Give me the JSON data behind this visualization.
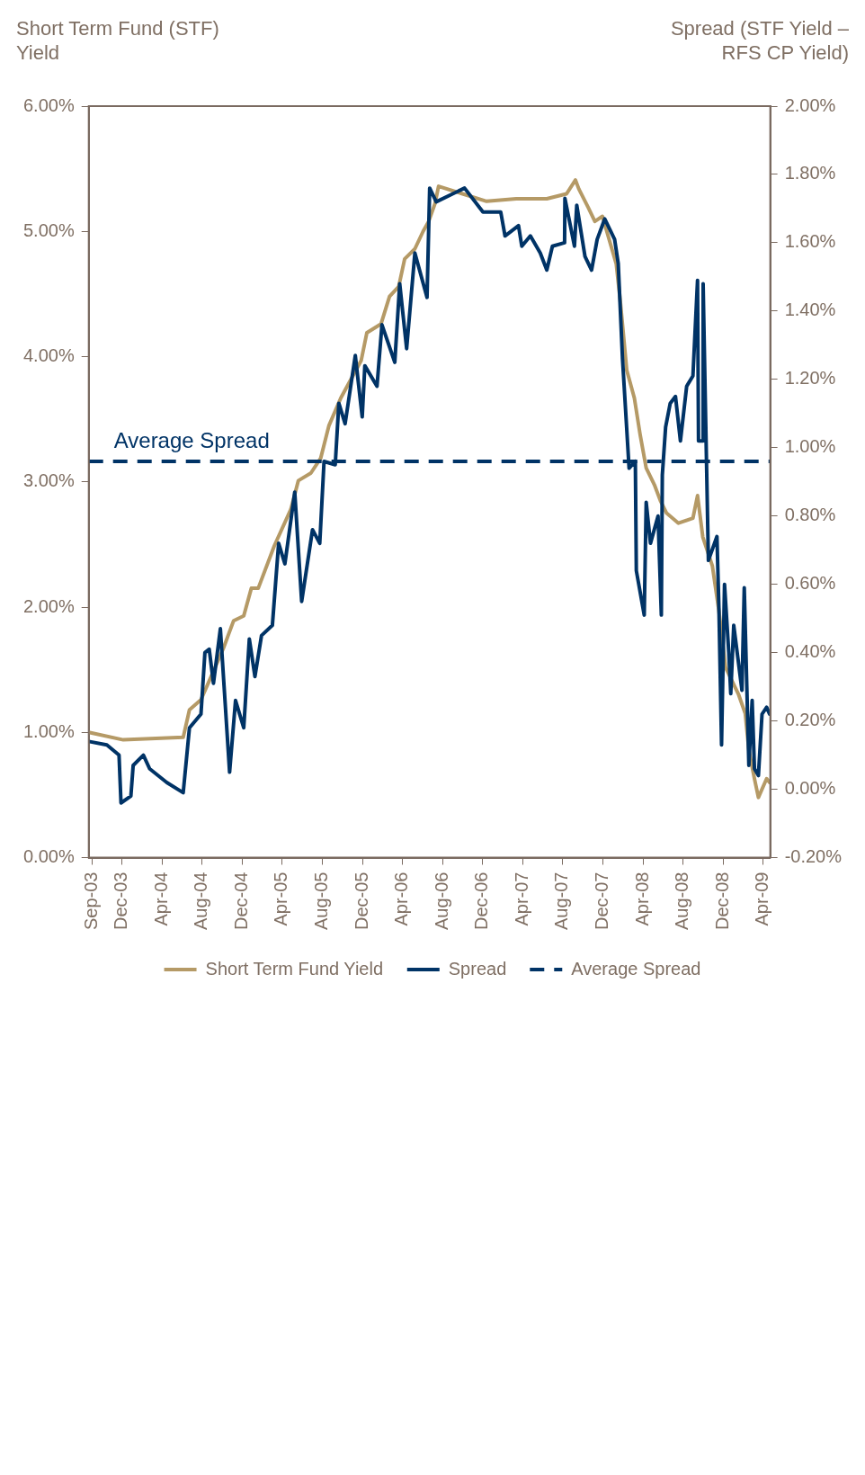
{
  "chart_data": {
    "type": "line",
    "ylabel": "Short Term Fund (STF) Yield",
    "y2label": "Spread (STF Yield – RFS CP Yield)",
    "xlim": [
      "2003-08-22",
      "2009-04-23"
    ],
    "xticks": [
      {
        "value": "2003-09-01",
        "label": "Sep-03"
      },
      {
        "value": "2003-12-01",
        "label": "Dec-03"
      },
      {
        "value": "2004-04-01",
        "label": "Apr-04"
      },
      {
        "value": "2004-08-01",
        "label": "Aug-04"
      },
      {
        "value": "2004-12-01",
        "label": "Dec-04"
      },
      {
        "value": "2005-04-01",
        "label": "Apr-05"
      },
      {
        "value": "2005-08-01",
        "label": "Aug-05"
      },
      {
        "value": "2005-12-01",
        "label": "Dec-05"
      },
      {
        "value": "2006-04-01",
        "label": "Apr-06"
      },
      {
        "value": "2006-08-01",
        "label": "Aug-06"
      },
      {
        "value": "2006-12-01",
        "label": "Dec-06"
      },
      {
        "value": "2007-04-01",
        "label": "Apr-07"
      },
      {
        "value": "2007-08-01",
        "label": "Aug-07"
      },
      {
        "value": "2007-12-01",
        "label": "Dec-07"
      },
      {
        "value": "2008-04-01",
        "label": "Apr-08"
      },
      {
        "value": "2008-08-01",
        "label": "Aug-08"
      },
      {
        "value": "2008-12-01",
        "label": "Dec-08"
      },
      {
        "value": "2009-04-01",
        "label": "Apr-09"
      }
    ],
    "ylim": [
      0,
      6
    ],
    "yticks": [
      {
        "value": 0,
        "label": "0.00%"
      },
      {
        "value": 1,
        "label": "1.00%"
      },
      {
        "value": 2,
        "label": "2.00%"
      },
      {
        "value": 3,
        "label": "3.00%"
      },
      {
        "value": 4,
        "label": "4.00%"
      },
      {
        "value": 5,
        "label": "5.00%"
      },
      {
        "value": 6,
        "label": "6.00%"
      }
    ],
    "y2lim": [
      -0.2,
      2
    ],
    "y2ticks": [
      {
        "value": -0.2,
        "label": "-0.20%"
      },
      {
        "value": 0,
        "label": "0.00%"
      },
      {
        "value": 0.2,
        "label": "0.20%"
      },
      {
        "value": 0.4,
        "label": "0.40%"
      },
      {
        "value": 0.6,
        "label": "0.60%"
      },
      {
        "value": 0.8,
        "label": "0.80%"
      },
      {
        "value": 1,
        "label": "1.00%"
      },
      {
        "value": 1.2,
        "label": "1.20%"
      },
      {
        "value": 1.4,
        "label": "1.40%"
      },
      {
        "value": 1.6,
        "label": "1.60%"
      },
      {
        "value": 1.8,
        "label": "1.80%"
      },
      {
        "value": 2,
        "label": "2.00%"
      }
    ],
    "grid": false,
    "legend": "bottom",
    "marker": "none",
    "line_style": "solid",
    "ref_lines": [
      {
        "axis": "y2",
        "value": 0.96,
        "label": "Average Spread",
        "color": "#003366",
        "line_style": "dashed"
      }
    ],
    "series": [
      {
        "name": "Short Term Fund Yield",
        "color": "#b59a66",
        "axis": "y",
        "x": [
          "2003-08-22",
          "2003-12-05",
          "2004-06-04",
          "2004-06-23",
          "2004-07-28",
          "2004-08-22",
          "2004-10-04",
          "2004-11-04",
          "2004-12-05",
          "2004-12-28",
          "2005-01-18",
          "2005-03-08",
          "2005-04-27",
          "2005-05-20",
          "2005-06-27",
          "2005-07-27",
          "2005-08-21",
          "2005-09-26",
          "2005-11-27",
          "2005-12-14",
          "2006-01-26",
          "2006-02-21",
          "2006-03-21",
          "2006-04-08",
          "2006-05-09",
          "2006-06-03",
          "2006-06-20",
          "2006-07-09",
          "2006-07-20",
          "2006-10-01",
          "2006-12-13",
          "2007-03-13",
          "2007-06-14",
          "2007-08-13",
          "2007-09-09",
          "2007-09-19",
          "2007-10-18",
          "2007-11-07",
          "2007-11-30",
          "2008-01-11",
          "2008-01-23",
          "2008-02-12",
          "2008-03-06",
          "2008-03-24",
          "2008-04-11",
          "2008-05-07",
          "2008-05-24",
          "2008-06-12",
          "2008-07-18",
          "2008-08-31",
          "2008-09-14",
          "2008-09-30",
          "2008-10-29",
          "2008-11-18",
          "2008-12-08",
          "2009-01-17",
          "2009-02-06",
          "2009-02-17",
          "2009-03-06",
          "2009-03-18",
          "2009-04-12",
          "2009-04-21"
        ],
        "values": [
          1.0,
          0.94,
          0.96,
          1.18,
          1.26,
          1.41,
          1.67,
          1.89,
          1.93,
          2.15,
          2.15,
          2.49,
          2.78,
          3.01,
          3.07,
          3.19,
          3.45,
          3.67,
          3.97,
          4.19,
          4.26,
          4.48,
          4.56,
          4.78,
          4.86,
          5.0,
          5.08,
          5.22,
          5.36,
          5.3,
          5.24,
          5.26,
          5.26,
          5.3,
          5.41,
          5.34,
          5.19,
          5.08,
          5.12,
          4.74,
          4.45,
          3.89,
          3.67,
          3.37,
          3.11,
          2.97,
          2.85,
          2.75,
          2.67,
          2.71,
          2.89,
          2.56,
          2.33,
          1.97,
          1.52,
          1.3,
          1.15,
          0.86,
          0.63,
          0.48,
          0.63,
          0.6
        ]
      },
      {
        "name": "Spread",
        "color": "#003366",
        "axis": "y2",
        "x": [
          "2003-08-22",
          "2003-10-16",
          "2003-11-22",
          "2003-11-28",
          "2003-12-28",
          "2004-01-04",
          "2004-02-04",
          "2004-02-23",
          "2004-04-15",
          "2004-06-04",
          "2004-06-23",
          "2004-07-28",
          "2004-08-09",
          "2004-08-22",
          "2004-09-04",
          "2004-09-25",
          "2004-10-23",
          "2004-11-10",
          "2004-12-05",
          "2004-12-22",
          "2005-01-08",
          "2005-01-28",
          "2005-03-02",
          "2005-03-21",
          "2005-04-09",
          "2005-05-09",
          "2005-05-30",
          "2005-07-02",
          "2005-07-24",
          "2005-08-06",
          "2005-09-09",
          "2005-09-20",
          "2005-10-09",
          "2005-11-09",
          "2005-11-30",
          "2005-12-08",
          "2006-01-14",
          "2006-01-29",
          "2006-03-09",
          "2006-03-24",
          "2006-04-14",
          "2006-05-09",
          "2006-06-15",
          "2006-06-23",
          "2006-07-13",
          "2006-10-07",
          "2006-12-02",
          "2007-01-25",
          "2007-02-07",
          "2007-03-20",
          "2007-03-30",
          "2007-04-25",
          "2007-05-25",
          "2007-06-14",
          "2007-07-01",
          "2007-08-07",
          "2007-08-08",
          "2007-09-06",
          "2007-09-13",
          "2007-10-08",
          "2007-10-28",
          "2007-11-14",
          "2007-12-07",
          "2008-01-06",
          "2008-01-17",
          "2008-01-30",
          "2008-02-19",
          "2008-03-09",
          "2008-03-12",
          "2008-04-05",
          "2008-04-11",
          "2008-04-24",
          "2008-05-17",
          "2008-05-27",
          "2008-05-30",
          "2008-06-09",
          "2008-06-23",
          "2008-07-09",
          "2008-07-24",
          "2008-08-12",
          "2008-08-31",
          "2008-09-14",
          "2008-09-17",
          "2008-09-30",
          "2008-10-01",
          "2008-10-09",
          "2008-10-17",
          "2008-11-12",
          "2008-11-18",
          "2008-11-26",
          "2008-12-05",
          "2008-12-18",
          "2008-12-24",
          "2009-01-02",
          "2009-01-27",
          "2009-02-03",
          "2009-02-17",
          "2009-02-27",
          "2009-03-06",
          "2009-03-18",
          "2009-03-29",
          "2009-04-12",
          "2009-04-21"
        ],
        "values": [
          0.14,
          0.13,
          0.1,
          -0.04,
          -0.02,
          0.07,
          0.1,
          0.06,
          0.02,
          -0.01,
          0.18,
          0.22,
          0.4,
          0.41,
          0.31,
          0.47,
          0.05,
          0.26,
          0.18,
          0.44,
          0.33,
          0.45,
          0.48,
          0.72,
          0.66,
          0.87,
          0.55,
          0.76,
          0.72,
          0.96,
          0.95,
          1.13,
          1.07,
          1.27,
          1.09,
          1.24,
          1.18,
          1.36,
          1.25,
          1.48,
          1.29,
          1.57,
          1.44,
          1.76,
          1.72,
          1.76,
          1.69,
          1.69,
          1.62,
          1.65,
          1.59,
          1.62,
          1.57,
          1.52,
          1.59,
          1.6,
          1.73,
          1.59,
          1.71,
          1.56,
          1.52,
          1.61,
          1.67,
          1.61,
          1.54,
          1.26,
          0.94,
          0.96,
          0.64,
          0.51,
          0.84,
          0.72,
          0.8,
          0.51,
          0.92,
          1.06,
          1.13,
          1.15,
          1.02,
          1.18,
          1.21,
          1.49,
          1.02,
          1.02,
          1.48,
          1.07,
          0.67,
          0.74,
          0.53,
          0.13,
          0.6,
          0.4,
          0.28,
          0.48,
          0.29,
          0.59,
          0.07,
          0.26,
          0.06,
          0.04,
          0.22,
          0.24,
          0.22
        ]
      }
    ]
  }
}
